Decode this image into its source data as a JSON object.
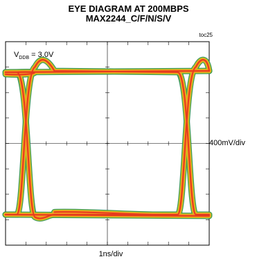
{
  "title_line1": "EYE DIAGRAM AT 200MBPS",
  "title_line2": "MAX2244_C/F/N/S/V",
  "figure_id": "toc25",
  "annotation": {
    "prefix": "V",
    "subscript": "DDB",
    "suffix": " = 3.0V"
  },
  "chart_data": {
    "type": "line",
    "plot_kind": "eye diagram",
    "title": "EYE DIAGRAM AT 200MBPS",
    "subtitle": "MAX2244_C/F/N/S/V",
    "xlabel": "1ns/div",
    "ylabel": "400mV/div",
    "x_divisions": 10,
    "y_divisions": 8,
    "grid": false,
    "annotation": "VDDB = 3.0V",
    "high_level_div": 2.8,
    "low_level_div": -2.8,
    "crossings_div": [
      -4.0,
      3.9
    ],
    "overshoot_div": 0.6,
    "colors": {
      "trace_core": "#e63a1e",
      "trace_mid": "#f79422",
      "trace_outer": "#c8c81e",
      "trace_edge": "#2f8f4f",
      "frame": "#000000"
    }
  }
}
